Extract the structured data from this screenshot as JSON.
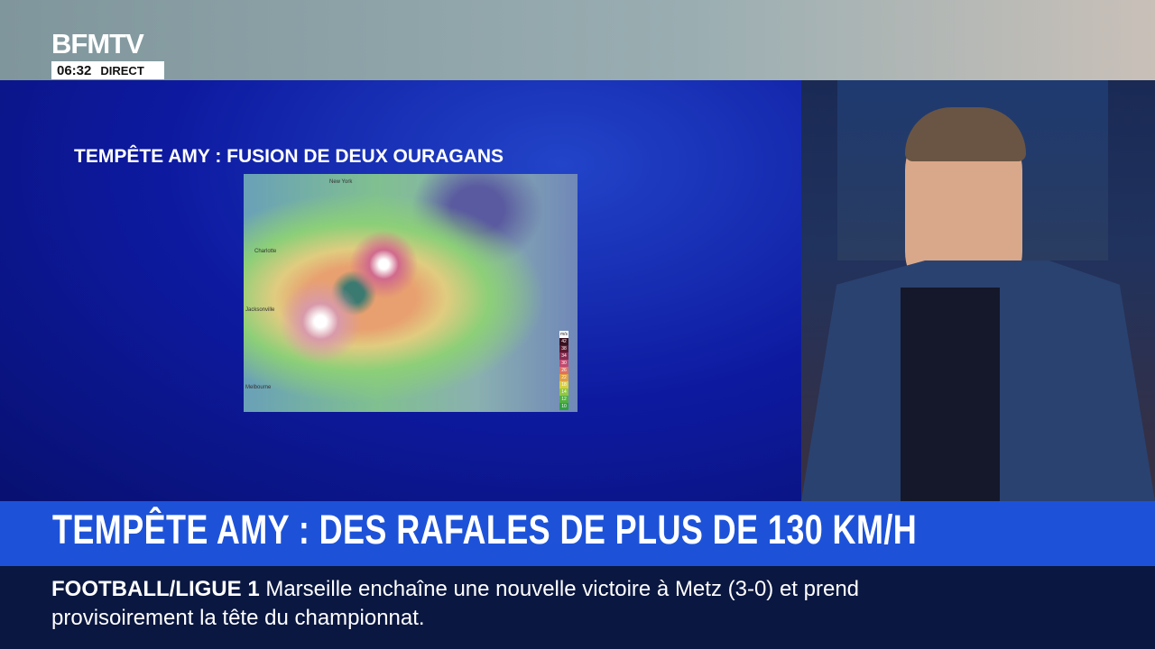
{
  "channel": {
    "logo": "BFMTV",
    "time": "06:32",
    "live_label": "DIRECT"
  },
  "graphic": {
    "title": "TEMPÊTE AMY : FUSION DE DEUX OURAGANS",
    "map_labels": [
      "New York",
      "Charlotte",
      "Jacksonville",
      "Melbourne"
    ],
    "legend": {
      "unit": "m/s",
      "values": [
        "42",
        "38",
        "34",
        "30",
        "26",
        "22",
        "18",
        "14",
        "12",
        "10"
      ]
    }
  },
  "headline": "TEMPÊTE AMY : DES RAFALES DE PLUS DE 130 KM/H",
  "ticker": {
    "category": "FOOTBALL/LIGUE 1",
    "text": "Marseille enchaîne une nouvelle victoire à Metz (3-0) et prend provisoirement la tête du championnat."
  }
}
